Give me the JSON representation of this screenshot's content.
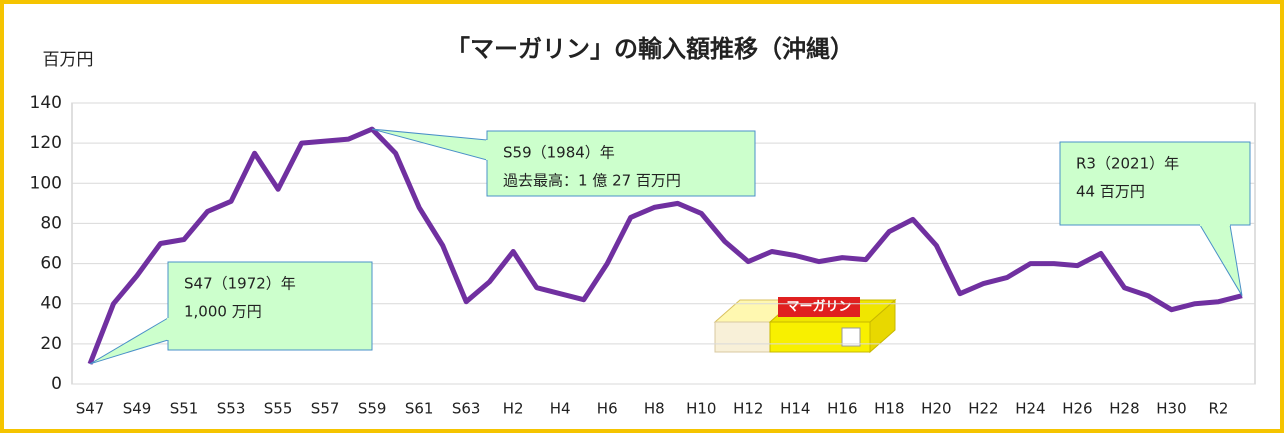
{
  "chart_data": {
    "type": "line",
    "title": "「マーガリン」の輸入額推移（沖縄）",
    "y_label": "百万円",
    "categories": [
      "S47",
      null,
      "S49",
      null,
      "S51",
      null,
      "S53",
      null,
      "S55",
      null,
      "S57",
      null,
      "S59",
      null,
      "S61",
      null,
      "S63",
      null,
      "H2",
      null,
      "H4",
      null,
      "H6",
      null,
      "H8",
      null,
      "H10",
      null,
      "H12",
      null,
      "H14",
      null,
      "H16",
      null,
      "H18",
      null,
      "H20",
      null,
      "H22",
      null,
      "H24",
      null,
      "H26",
      null,
      "H28",
      null,
      "H30",
      null,
      "R2",
      null
    ],
    "values": [
      10,
      40,
      54,
      70,
      72,
      86,
      91,
      115,
      97,
      120,
      121,
      122,
      127,
      115,
      88,
      69,
      41,
      51,
      66,
      48,
      45,
      42,
      60,
      83,
      88,
      90,
      85,
      71,
      61,
      66,
      64,
      61,
      63,
      62,
      76,
      82,
      69,
      45,
      50,
      53,
      60,
      60,
      59,
      65,
      48,
      44,
      37,
      40,
      41,
      44
    ],
    "color": "#7030a0",
    "ylim": [
      0,
      140
    ],
    "yticks": [
      0,
      20,
      40,
      60,
      80,
      100,
      120,
      140
    ],
    "grid": true,
    "annotations": [
      {
        "lines": [
          "S47（1972）年",
          "1,000 万円"
        ]
      },
      {
        "lines": [
          "S59（1984）年",
          "過去最高：1 億 27 百万円"
        ]
      },
      {
        "lines": [
          "R3（2021）年",
          "44 百万円"
        ]
      }
    ],
    "image_label": "マーガリン"
  }
}
